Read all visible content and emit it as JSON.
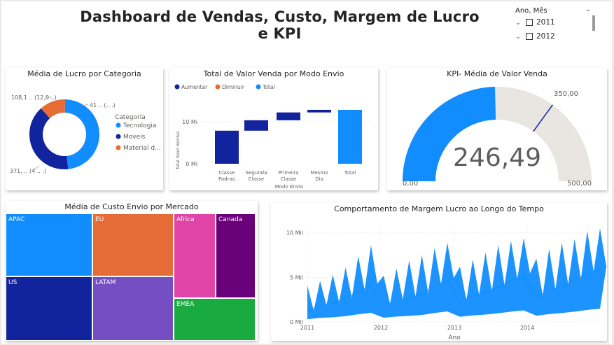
{
  "page": {
    "title": "Dashboard de Vendas, Custo, Margem de Lucro e KPI"
  },
  "slicer": {
    "header": "Ano, Mês",
    "items": [
      "2011",
      "2012"
    ]
  },
  "donut": {
    "title": "Média de Lucro por Categoria",
    "legend_title": "Categoria",
    "labels": [
      "108,1 .. (12,0 ..)",
      "41 .. (.. .)",
      "371,  .. (4 .. .)"
    ],
    "colors": {
      "Tecnologia": "#118DFF",
      "Moveis": "#12239E",
      "Material d...": "#E66C37"
    }
  },
  "waterfall": {
    "title": "Total de Valor Venda por Modo Envio",
    "legend": [
      "Aumentar",
      "Diminuir",
      "Total"
    ],
    "colors": {
      "Aumentar": "#12239E",
      "Diminuir": "#E66C37",
      "Total": "#118DFF"
    },
    "ylabel": "Total Valor Vendas",
    "xlabel": "Modo Envio",
    "ytick_labels": [
      "0 Mi",
      "10 Mi"
    ],
    "category_lines": [
      [
        "Classe",
        "Padrao"
      ],
      [
        "Segunda",
        "Classe"
      ],
      [
        "Primeira",
        "Classe"
      ],
      [
        "Mesmo",
        "Dia"
      ],
      [
        "Total"
      ]
    ]
  },
  "gauge": {
    "title": "KPI- Média de Valor Venda",
    "value_text": "246,49",
    "min_text": "0,00",
    "max_text": "500,00",
    "target_text": "350,00",
    "colors": {
      "fill": "#118DFF",
      "track": "#E9E6E2",
      "target": "#12239E"
    }
  },
  "treemap": {
    "title": "Média de Custo Envio por Mercado",
    "labels": [
      "APAC",
      "EU",
      "Africa",
      "Canada",
      "US",
      "LATAM",
      "EMEA"
    ],
    "colors": [
      "#118DFF",
      "#E66C37",
      "#E044A7",
      "#6B007B",
      "#12239E",
      "#744EC2",
      "#1AAB40"
    ]
  },
  "line": {
    "title": "Comportamento de Margem Lucro ao Longo do Tempo",
    "xlabel": "Ano",
    "x_tick_labels": [
      "2011",
      "2012",
      "2013",
      "2014"
    ],
    "y_tick_labels": [
      "0 Mil",
      "5 Mil",
      "10 Mil"
    ],
    "color": "#118DFF"
  },
  "chart_data": [
    {
      "type": "pie",
      "title": "Média de Lucro por Categoria",
      "categories": [
        "Tecnologia",
        "Moveis",
        "Material d..."
      ],
      "values": [
        0.48,
        0.4,
        0.12
      ]
    },
    {
      "type": "bar",
      "subtype": "waterfall",
      "title": "Total de Valor Venda por Modo Envio",
      "categories": [
        "Classe Padrao",
        "Segunda Classe",
        "Primeira Classe",
        "Mesmo Dia",
        "Total"
      ],
      "values": [
        7.6,
        2.4,
        1.8,
        0.6,
        12.4
      ],
      "ylim": [
        0,
        14
      ],
      "ylabel": "Total Valor Vendas",
      "xlabel": "Modo Envio"
    },
    {
      "type": "gauge",
      "title": "KPI- Média de Valor Venda",
      "value": 246.49,
      "min": 0,
      "max": 500,
      "target": 350
    },
    {
      "type": "treemap",
      "title": "Média de Custo Envio por Mercado",
      "categories": [
        "APAC",
        "EU",
        "Africa",
        "Canada",
        "US",
        "LATAM",
        "EMEA"
      ],
      "values": [
        28,
        25,
        14,
        16,
        26,
        23,
        13
      ]
    },
    {
      "type": "line",
      "title": "Comportamento de Margem Lucro ao Longo do Tempo",
      "xlabel": "Ano",
      "x": [
        "2011-01",
        "2011-03",
        "2011-05",
        "2011-07",
        "2011-09",
        "2011-11",
        "2012-01",
        "2012-03",
        "2012-05",
        "2012-07",
        "2012-09",
        "2012-11",
        "2013-01",
        "2013-03",
        "2013-05",
        "2013-07",
        "2013-09",
        "2013-11",
        "2014-01",
        "2014-03",
        "2014-05",
        "2014-07",
        "2014-09",
        "2014-11"
      ],
      "values": [
        1200,
        1800,
        2100,
        2600,
        3400,
        4100,
        1900,
        2400,
        2700,
        3100,
        4000,
        4700,
        2300,
        2900,
        3300,
        3900,
        4600,
        5200,
        2800,
        3500,
        4000,
        4600,
        5400,
        5900
      ],
      "peaks": [
        4100,
        4600,
        5300,
        6100,
        7400,
        8600,
        5200,
        6000,
        6900,
        7500,
        8300,
        8900,
        6200,
        7000,
        7800,
        8600,
        9100,
        9400,
        7100,
        8200,
        8900,
        9300,
        10200,
        10500
      ],
      "ylim": [
        0,
        11000
      ]
    }
  ]
}
